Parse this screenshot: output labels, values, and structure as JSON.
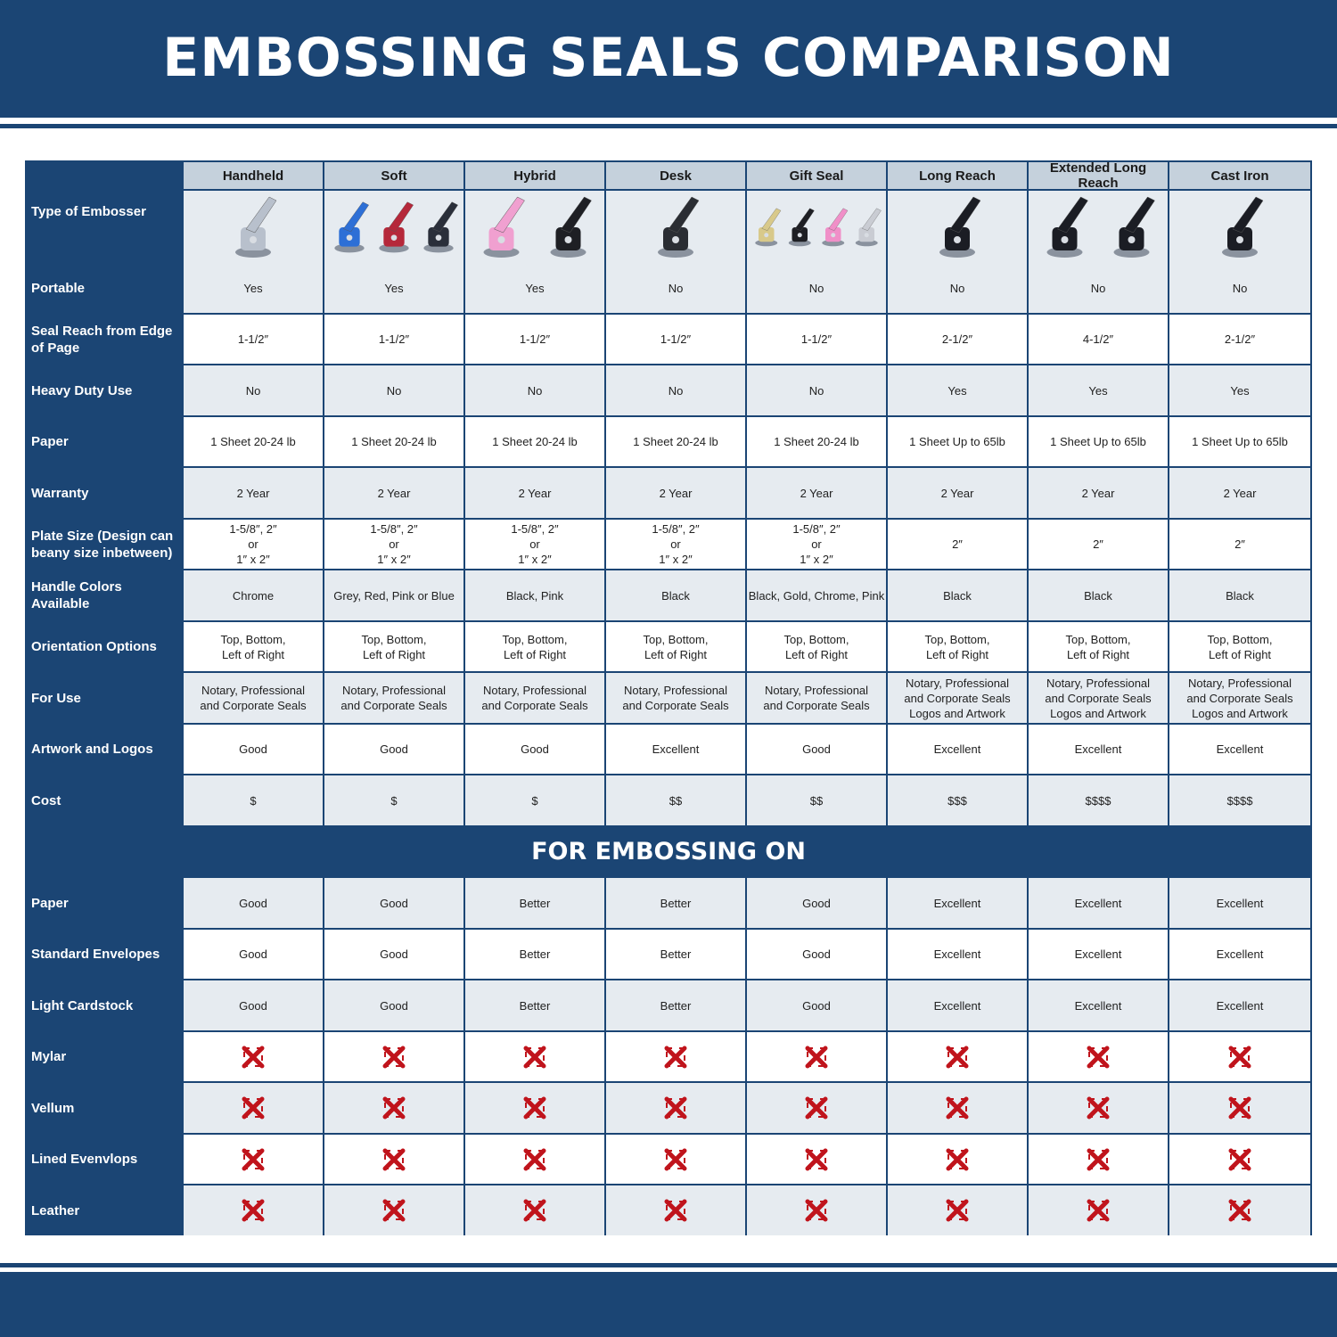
{
  "title": "EMBOSSING SEALS COMPARISON",
  "colors": {
    "brand_blue": "#1b4574",
    "light_row": "#e6ebf0",
    "header_row": "#c5d1dc",
    "x_mark": "#c0141c"
  },
  "type_label": "Type of Embosser",
  "columns": [
    {
      "name": "Handheld",
      "image": "chrome-handheld-embosser"
    },
    {
      "name": "Soft",
      "image": "blue-red-grey-soft-embossers"
    },
    {
      "name": "Hybrid",
      "image": "pink-black-hybrid-embossers"
    },
    {
      "name": "Desk",
      "image": "chrome-desk-embosser"
    },
    {
      "name": "Gift Seal",
      "image": "gold-black-pink-chrome-gift-seals"
    },
    {
      "name": "Long Reach",
      "image": "black-long-reach-embosser"
    },
    {
      "name": "Extended Long Reach",
      "image": "black-extended-long-reach-embossers"
    },
    {
      "name": "Cast Iron",
      "image": "black-cast-iron-embosser"
    }
  ],
  "rows": [
    {
      "label": "Portable",
      "values": [
        "Yes",
        "Yes",
        "Yes",
        "No",
        "No",
        "No",
        "No",
        "No"
      ]
    },
    {
      "label": "Seal Reach from Edge\nof Page",
      "values": [
        "1-1/2″",
        "1-1/2″",
        "1-1/2″",
        "1-1/2″",
        "1-1/2″",
        "2-1/2″",
        "4-1/2″",
        "2-1/2″"
      ]
    },
    {
      "label": "Heavy Duty Use",
      "values": [
        "No",
        "No",
        "No",
        "No",
        "No",
        "Yes",
        "Yes",
        "Yes"
      ]
    },
    {
      "label": "Paper",
      "values": [
        "1 Sheet 20-24 lb",
        "1 Sheet 20-24 lb",
        "1 Sheet 20-24 lb",
        "1 Sheet 20-24 lb",
        "1 Sheet 20-24 lb",
        "1 Sheet Up to 65lb",
        "1 Sheet Up to 65lb",
        "1 Sheet Up to 65lb"
      ]
    },
    {
      "label": "Warranty",
      "values": [
        "2 Year",
        "2 Year",
        "2 Year",
        "2 Year",
        "2 Year",
        "2 Year",
        "2 Year",
        "2 Year"
      ]
    },
    {
      "label": "Plate Size (Design can\nbeany size inbetween)",
      "values": [
        "1-5/8″, 2″\nor\n1″ x 2″",
        "1-5/8″, 2″\nor\n1″ x 2″",
        "1-5/8″, 2″\nor\n1″ x 2″",
        "1-5/8″, 2″\nor\n1″ x 2″",
        "1-5/8″, 2″\nor\n1″ x 2″",
        "2″",
        "2″",
        "2″"
      ]
    },
    {
      "label": "Handle Colors Available",
      "values": [
        "Chrome",
        "Grey, Red, Pink or Blue",
        "Black, Pink",
        "Black",
        "Black, Gold, Chrome, Pink",
        "Black",
        "Black",
        "Black"
      ]
    },
    {
      "label": "Orientation Options",
      "values": [
        "Top, Bottom,\nLeft of Right",
        "Top, Bottom,\nLeft of Right",
        "Top, Bottom,\nLeft of Right",
        "Top, Bottom,\nLeft of Right",
        "Top, Bottom,\nLeft of Right",
        "Top, Bottom,\nLeft of Right",
        "Top, Bottom,\nLeft of Right",
        "Top, Bottom,\nLeft of Right"
      ]
    },
    {
      "label": "For Use",
      "values": [
        "Notary, Professional\nand Corporate Seals",
        "Notary, Professional\nand Corporate Seals",
        "Notary, Professional\nand Corporate Seals",
        "Notary, Professional\nand Corporate Seals",
        "Notary, Professional\nand Corporate Seals",
        "Notary, Professional\nand Corporate Seals\nLogos and Artwork",
        "Notary, Professional\nand Corporate Seals\nLogos and Artwork",
        "Notary, Professional\nand Corporate Seals\nLogos and Artwork"
      ]
    },
    {
      "label": "Artwork and Logos",
      "values": [
        "Good",
        "Good",
        "Good",
        "Excellent",
        "Good",
        "Excellent",
        "Excellent",
        "Excellent"
      ]
    },
    {
      "label": "Cost",
      "values": [
        "$",
        "$",
        "$",
        "$$",
        "$$",
        "$$$",
        "$$$$",
        "$$$$"
      ]
    }
  ],
  "section_title": "FOR EMBOSSING ON",
  "embossing_rows": [
    {
      "label": "Paper",
      "values": [
        "Good",
        "Good",
        "Better",
        "Better",
        "Good",
        "Excellent",
        "Excellent",
        "Excellent"
      ]
    },
    {
      "label": "Standard Envelopes",
      "values": [
        "Good",
        "Good",
        "Better",
        "Better",
        "Good",
        "Excellent",
        "Excellent",
        "Excellent"
      ]
    },
    {
      "label": "Light Cardstock",
      "values": [
        "Good",
        "Good",
        "Better",
        "Better",
        "Good",
        "Excellent",
        "Excellent",
        "Excellent"
      ]
    },
    {
      "label": "Mylar",
      "values": [
        "x-icon",
        "x-icon",
        "x-icon",
        "x-icon",
        "x-icon",
        "x-icon",
        "x-icon",
        "x-icon"
      ]
    },
    {
      "label": "Vellum",
      "values": [
        "x-icon",
        "x-icon",
        "x-icon",
        "x-icon",
        "x-icon",
        "x-icon",
        "x-icon",
        "x-icon"
      ]
    },
    {
      "label": "Lined Evenvlops",
      "values": [
        "x-icon",
        "x-icon",
        "x-icon",
        "x-icon",
        "x-icon",
        "x-icon",
        "x-icon",
        "x-icon"
      ]
    },
    {
      "label": "Leather",
      "values": [
        "x-icon",
        "x-icon",
        "x-icon",
        "x-icon",
        "x-icon",
        "x-icon",
        "x-icon",
        "x-icon"
      ]
    }
  ]
}
